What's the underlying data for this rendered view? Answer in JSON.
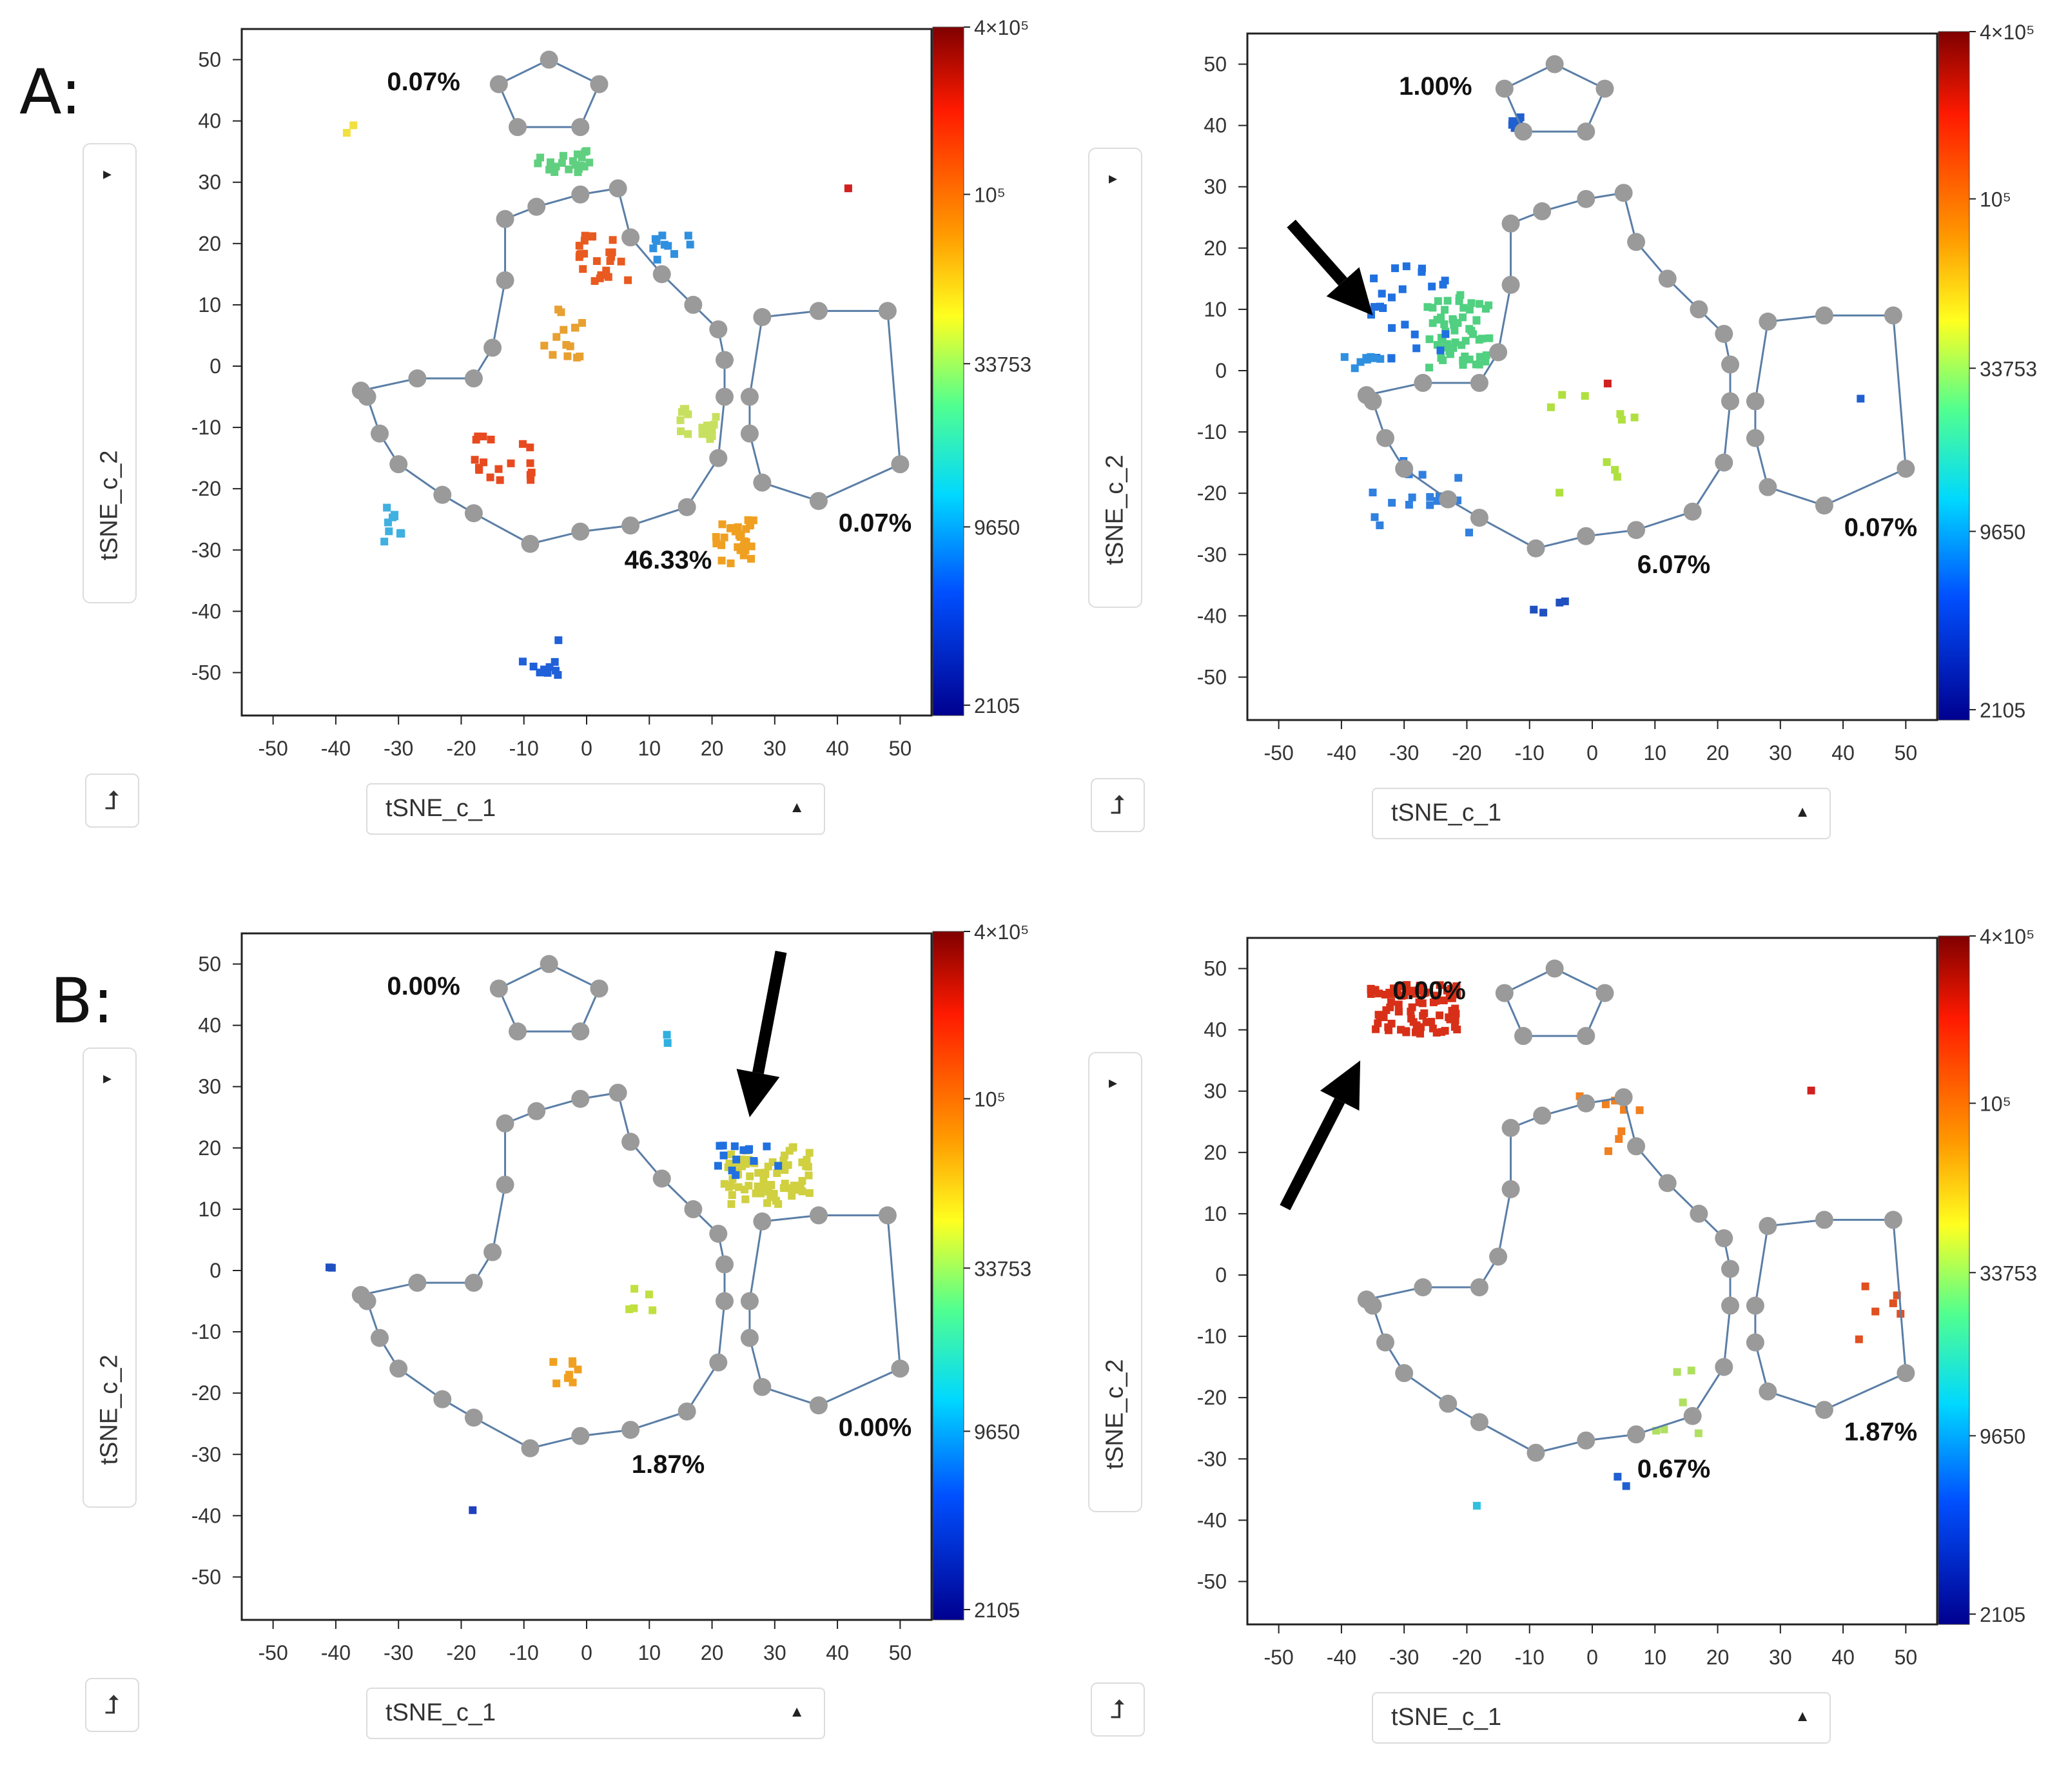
{
  "panel_labels": {
    "a": "A:",
    "b": "B:"
  },
  "controls": {
    "x_channel": "tSNE_c_1",
    "y_channel": "tSNE_c_2"
  },
  "chart_data": [
    {
      "type": "scatter",
      "panel": "A",
      "position": "top-left",
      "xlabel": "tSNE_c_1",
      "ylabel": "tSNE_c_2",
      "xlim": [
        -55,
        55
      ],
      "ylim": [
        -57,
        55
      ],
      "x_ticks": [
        -50,
        -40,
        -30,
        -20,
        -10,
        0,
        10,
        20,
        30,
        40,
        50
      ],
      "y_ticks": [
        50,
        40,
        30,
        20,
        10,
        0,
        -10,
        -20,
        -30,
        -40,
        -50
      ],
      "colorbar": {
        "ticks": [
          "4×10⁵",
          "10⁵",
          "33753",
          "9650",
          "2105"
        ],
        "colormap": "jet"
      },
      "gate_percentages": [
        {
          "gate": "small-pentagon",
          "label": "0.07%",
          "x": -26,
          "y": 45
        },
        {
          "gate": "large-center",
          "label": "46.33%",
          "x": 13,
          "y": -33
        },
        {
          "gate": "right-hexagon",
          "label": "0.07%",
          "x": 46,
          "y": -27
        }
      ],
      "clusters": [
        {
          "x": -4,
          "y": 34,
          "spread_x": 5,
          "spread_y": 2,
          "color": "#60d080",
          "n": 20
        },
        {
          "x": 2,
          "y": 18,
          "spread_x": 4,
          "spread_y": 4,
          "color": "#e85a20",
          "n": 24
        },
        {
          "x": -4,
          "y": 6,
          "spread_x": 4,
          "spread_y": 4,
          "color": "#e8a030",
          "n": 14
        },
        {
          "x": 17,
          "y": -9,
          "spread_x": 3,
          "spread_y": 3,
          "color": "#c8e060",
          "n": 18
        },
        {
          "x": 23,
          "y": -28,
          "spread_x": 3,
          "spread_y": 4,
          "color": "#f0a020",
          "n": 30
        },
        {
          "x": -14,
          "y": -14,
          "spread_x": 5,
          "spread_y": 4,
          "color": "#e84a20",
          "n": 18
        },
        {
          "x": -32,
          "y": -25,
          "spread_x": 2,
          "spread_y": 3,
          "color": "#40b0e0",
          "n": 10
        },
        {
          "x": -8,
          "y": -47,
          "spread_x": 3,
          "spread_y": 3,
          "color": "#2060d8",
          "n": 10
        },
        {
          "x": 13,
          "y": 20,
          "spread_x": 3,
          "spread_y": 2,
          "color": "#3090e0",
          "n": 10
        },
        {
          "x": -38,
          "y": 39,
          "spread_x": 1,
          "spread_y": 1,
          "color": "#f0e040",
          "n": 2
        },
        {
          "x": 42,
          "y": 30,
          "spread_x": 1,
          "spread_y": 1,
          "color": "#d02020",
          "n": 1
        }
      ]
    },
    {
      "type": "scatter",
      "panel": "A",
      "position": "top-right",
      "xlabel": "tSNE_c_1",
      "ylabel": "tSNE_c_2",
      "xlim": [
        -55,
        55
      ],
      "ylim": [
        -57,
        55
      ],
      "x_ticks": [
        -50,
        -40,
        -30,
        -20,
        -10,
        0,
        10,
        20,
        30,
        40,
        50
      ],
      "y_ticks": [
        50,
        40,
        30,
        20,
        10,
        0,
        -10,
        -20,
        -30,
        -40,
        -50
      ],
      "colorbar": {
        "ticks": [
          "4×10⁵",
          "10⁵",
          "33753",
          "9650",
          "2105"
        ],
        "colormap": "jet"
      },
      "gate_percentages": [
        {
          "gate": "small-pentagon",
          "label": "1.00%",
          "x": -25,
          "y": 45
        },
        {
          "gate": "large-center",
          "label": "6.07%",
          "x": 13,
          "y": -33
        },
        {
          "gate": "right-hexagon",
          "label": "0.07%",
          "x": 46,
          "y": -27
        }
      ],
      "arrow": {
        "tip_x": -35,
        "tip_y": 9,
        "tail_x": -48,
        "tail_y": 24
      },
      "clusters": [
        {
          "x": -22,
          "y": 7,
          "spread_x": 5,
          "spread_y": 6,
          "color": "#50d080",
          "n": 60
        },
        {
          "x": -30,
          "y": 10,
          "spread_x": 6,
          "spread_y": 8,
          "color": "#2070e0",
          "n": 24
        },
        {
          "x": -13,
          "y": 41,
          "spread_x": 1,
          "spread_y": 1,
          "color": "#2060d0",
          "n": 6
        },
        {
          "x": -28,
          "y": -20,
          "spread_x": 8,
          "spread_y": 6,
          "color": "#3080e0",
          "n": 16
        },
        {
          "x": 0,
          "y": -10,
          "spread_x": 8,
          "spread_y": 10,
          "color": "#b0e040",
          "n": 10
        },
        {
          "x": -38,
          "y": 2,
          "spread_x": 4,
          "spread_y": 1,
          "color": "#3090e0",
          "n": 8
        },
        {
          "x": -6,
          "y": -37,
          "spread_x": 5,
          "spread_y": 2,
          "color": "#2050c0",
          "n": 4
        },
        {
          "x": 43,
          "y": -4,
          "spread_x": 1,
          "spread_y": 1,
          "color": "#2060d0",
          "n": 1
        },
        {
          "x": 2,
          "y": -2,
          "spread_x": 1,
          "spread_y": 1,
          "color": "#d02020",
          "n": 1
        }
      ]
    },
    {
      "type": "scatter",
      "panel": "B",
      "position": "bottom-left",
      "xlabel": "tSNE_c_1",
      "ylabel": "tSNE_c_2",
      "xlim": [
        -55,
        55
      ],
      "ylim": [
        -57,
        55
      ],
      "x_ticks": [
        -50,
        -40,
        -30,
        -20,
        -10,
        0,
        10,
        20,
        30,
        40,
        50
      ],
      "y_ticks": [
        50,
        40,
        30,
        20,
        10,
        0,
        -10,
        -20,
        -30,
        -40,
        -50
      ],
      "colorbar": {
        "ticks": [
          "4×10⁵",
          "10⁵",
          "33753",
          "9650",
          "2105"
        ],
        "colormap": "jet"
      },
      "gate_percentages": [
        {
          "gate": "small-pentagon",
          "label": "0.00%",
          "x": -26,
          "y": 45
        },
        {
          "gate": "large-center",
          "label": "1.87%",
          "x": 13,
          "y": -33
        },
        {
          "gate": "right-hexagon",
          "label": "0.00%",
          "x": 46,
          "y": -27
        }
      ],
      "arrow": {
        "tip_x": 26,
        "tip_y": 25,
        "tail_x": 31,
        "tail_y": 52
      },
      "clusters": [
        {
          "x": 28,
          "y": 16,
          "spread_x": 7,
          "spread_y": 5,
          "color": "#d0d040",
          "n": 70
        },
        {
          "x": 25,
          "y": 19,
          "spread_x": 5,
          "spread_y": 3,
          "color": "#2070e0",
          "n": 14
        },
        {
          "x": -4,
          "y": -16,
          "spread_x": 2,
          "spread_y": 2,
          "color": "#f0a020",
          "n": 8
        },
        {
          "x": 8,
          "y": -4,
          "spread_x": 2,
          "spread_y": 2,
          "color": "#c0e040",
          "n": 5
        },
        {
          "x": -42,
          "y": 1,
          "spread_x": 1,
          "spread_y": 1,
          "color": "#2050c0",
          "n": 2
        },
        {
          "x": -18,
          "y": -38,
          "spread_x": 1,
          "spread_y": 1,
          "color": "#2040c0",
          "n": 1
        },
        {
          "x": 13,
          "y": 38,
          "spread_x": 1,
          "spread_y": 2,
          "color": "#30b0e0",
          "n": 2
        }
      ]
    },
    {
      "type": "scatter",
      "panel": "B",
      "position": "bottom-right",
      "xlabel": "tSNE_c_1",
      "ylabel": "tSNE_c_2",
      "xlim": [
        -55,
        55
      ],
      "ylim": [
        -57,
        55
      ],
      "x_ticks": [
        -50,
        -40,
        -30,
        -20,
        -10,
        0,
        10,
        20,
        30,
        40,
        50
      ],
      "y_ticks": [
        50,
        40,
        30,
        20,
        10,
        0,
        -10,
        -20,
        -30,
        -40,
        -50
      ],
      "colorbar": {
        "ticks": [
          "4×10⁵",
          "10⁵",
          "33753",
          "9650",
          "2105"
        ],
        "colormap": "jet"
      },
      "gate_percentages": [
        {
          "gate": "small-pentagon",
          "label": "0.00%",
          "x": -26,
          "y": 45
        },
        {
          "gate": "large-center",
          "label": "0.67%",
          "x": 13,
          "y": -33
        },
        {
          "gate": "right-hexagon",
          "label": "1.87%",
          "x": 46,
          "y": -27
        }
      ],
      "arrow": {
        "tip_x": -37,
        "tip_y": 35,
        "tail_x": -49,
        "tail_y": 11
      },
      "clusters": [
        {
          "x": -29,
          "y": 44,
          "spread_x": 7,
          "spread_y": 4,
          "color": "#d83018",
          "n": 80
        },
        {
          "x": 2,
          "y": 26,
          "spread_x": 5,
          "spread_y": 7,
          "color": "#f08020",
          "n": 10
        },
        {
          "x": 45,
          "y": -5,
          "spread_x": 4,
          "spread_y": 5,
          "color": "#e05020",
          "n": 6
        },
        {
          "x": 12,
          "y": -18,
          "spread_x": 8,
          "spread_y": 8,
          "color": "#b0e060",
          "n": 6
        },
        {
          "x": 4,
          "y": -33,
          "spread_x": 1,
          "spread_y": 1,
          "color": "#2060d0",
          "n": 2
        },
        {
          "x": -20,
          "y": -37,
          "spread_x": 1,
          "spread_y": 1,
          "color": "#30c0e0",
          "n": 1
        },
        {
          "x": 34,
          "y": 30,
          "spread_x": 1,
          "spread_y": 1,
          "color": "#d02020",
          "n": 1
        }
      ]
    }
  ]
}
